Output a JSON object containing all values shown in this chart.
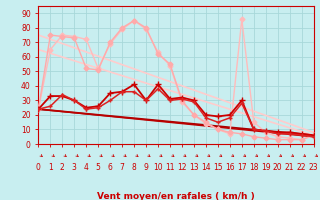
{
  "xlabel": "Vent moyen/en rafales ( km/h )",
  "bg_color": "#c8eef0",
  "grid_color": "#a8d8da",
  "axis_color": "#cc0000",
  "xlim": [
    0,
    23
  ],
  "ylim": [
    0,
    95
  ],
  "yticks": [
    0,
    10,
    20,
    30,
    40,
    50,
    60,
    70,
    80,
    90
  ],
  "xticks": [
    0,
    1,
    2,
    3,
    4,
    5,
    6,
    7,
    8,
    9,
    10,
    11,
    12,
    13,
    14,
    15,
    16,
    17,
    18,
    19,
    20,
    21,
    22,
    23
  ],
  "lines": [
    {
      "x": [
        0,
        1,
        2,
        3,
        4,
        5,
        6,
        7,
        8,
        9,
        10,
        11,
        12,
        13,
        14,
        15,
        16,
        17,
        18,
        19,
        20,
        21,
        22,
        23
      ],
      "y": [
        24,
        75,
        74,
        73,
        52,
        51,
        70,
        80,
        85,
        80,
        62,
        55,
        30,
        20,
        15,
        10,
        8,
        7,
        5,
        4,
        3,
        3,
        3,
        6
      ],
      "color": "#ffaaaa",
      "lw": 1.0,
      "marker": "D",
      "ms": 2.5,
      "zorder": 5
    },
    {
      "x": [
        0,
        1,
        2,
        3,
        4,
        5,
        6,
        7,
        8,
        9,
        10,
        11,
        12,
        13,
        14,
        15,
        16,
        17,
        18,
        19,
        20,
        21,
        22,
        23
      ],
      "y": [
        24,
        65,
        75,
        74,
        72,
        52,
        69,
        79,
        85,
        79,
        63,
        54,
        29,
        20,
        14,
        10,
        7,
        86,
        15,
        8,
        5,
        4,
        3,
        6
      ],
      "color": "#ffbbbb",
      "lw": 1.0,
      "marker": "D",
      "ms": 2.5,
      "zorder": 4
    },
    {
      "x": [
        0,
        23
      ],
      "y": [
        75,
        8
      ],
      "color": "#ffcccc",
      "lw": 1.2,
      "marker": null,
      "ms": 0,
      "zorder": 2
    },
    {
      "x": [
        0,
        23
      ],
      "y": [
        65,
        6
      ],
      "color": "#ffcccc",
      "lw": 1.2,
      "marker": null,
      "ms": 0,
      "zorder": 2
    },
    {
      "x": [
        0,
        1,
        2,
        3,
        4,
        5,
        6,
        7,
        8,
        9,
        10,
        11,
        12,
        13,
        14,
        15,
        16,
        17,
        18,
        19,
        20,
        21,
        22,
        23
      ],
      "y": [
        24,
        33,
        33,
        30,
        25,
        26,
        35,
        36,
        41,
        30,
        41,
        31,
        32,
        30,
        20,
        19,
        20,
        30,
        10,
        9,
        8,
        8,
        7,
        6
      ],
      "color": "#cc0000",
      "lw": 1.3,
      "marker": "+",
      "ms": 4,
      "zorder": 6
    },
    {
      "x": [
        0,
        1,
        2,
        3,
        4,
        5,
        6,
        7,
        8,
        9,
        10,
        11,
        12,
        13,
        14,
        15,
        16,
        17,
        18,
        19,
        20,
        21,
        22,
        23
      ],
      "y": [
        24,
        26,
        34,
        30,
        24,
        25,
        30,
        36,
        36,
        30,
        38,
        30,
        31,
        29,
        18,
        15,
        18,
        28,
        10,
        9,
        7,
        7,
        6,
        5
      ],
      "color": "#dd2222",
      "lw": 1.1,
      "marker": "+",
      "ms": 3.5,
      "zorder": 6
    },
    {
      "x": [
        0,
        23
      ],
      "y": [
        24,
        6
      ],
      "color": "#aa0000",
      "lw": 1.3,
      "marker": null,
      "ms": 0,
      "zorder": 3
    },
    {
      "x": [
        0,
        23
      ],
      "y": [
        24,
        5
      ],
      "color": "#bb0000",
      "lw": 1.1,
      "marker": null,
      "ms": 0,
      "zorder": 3
    }
  ],
  "xlabel_fontsize": 6.5,
  "tick_fontsize": 5.5,
  "figsize": [
    3.2,
    2.0
  ],
  "dpi": 100
}
